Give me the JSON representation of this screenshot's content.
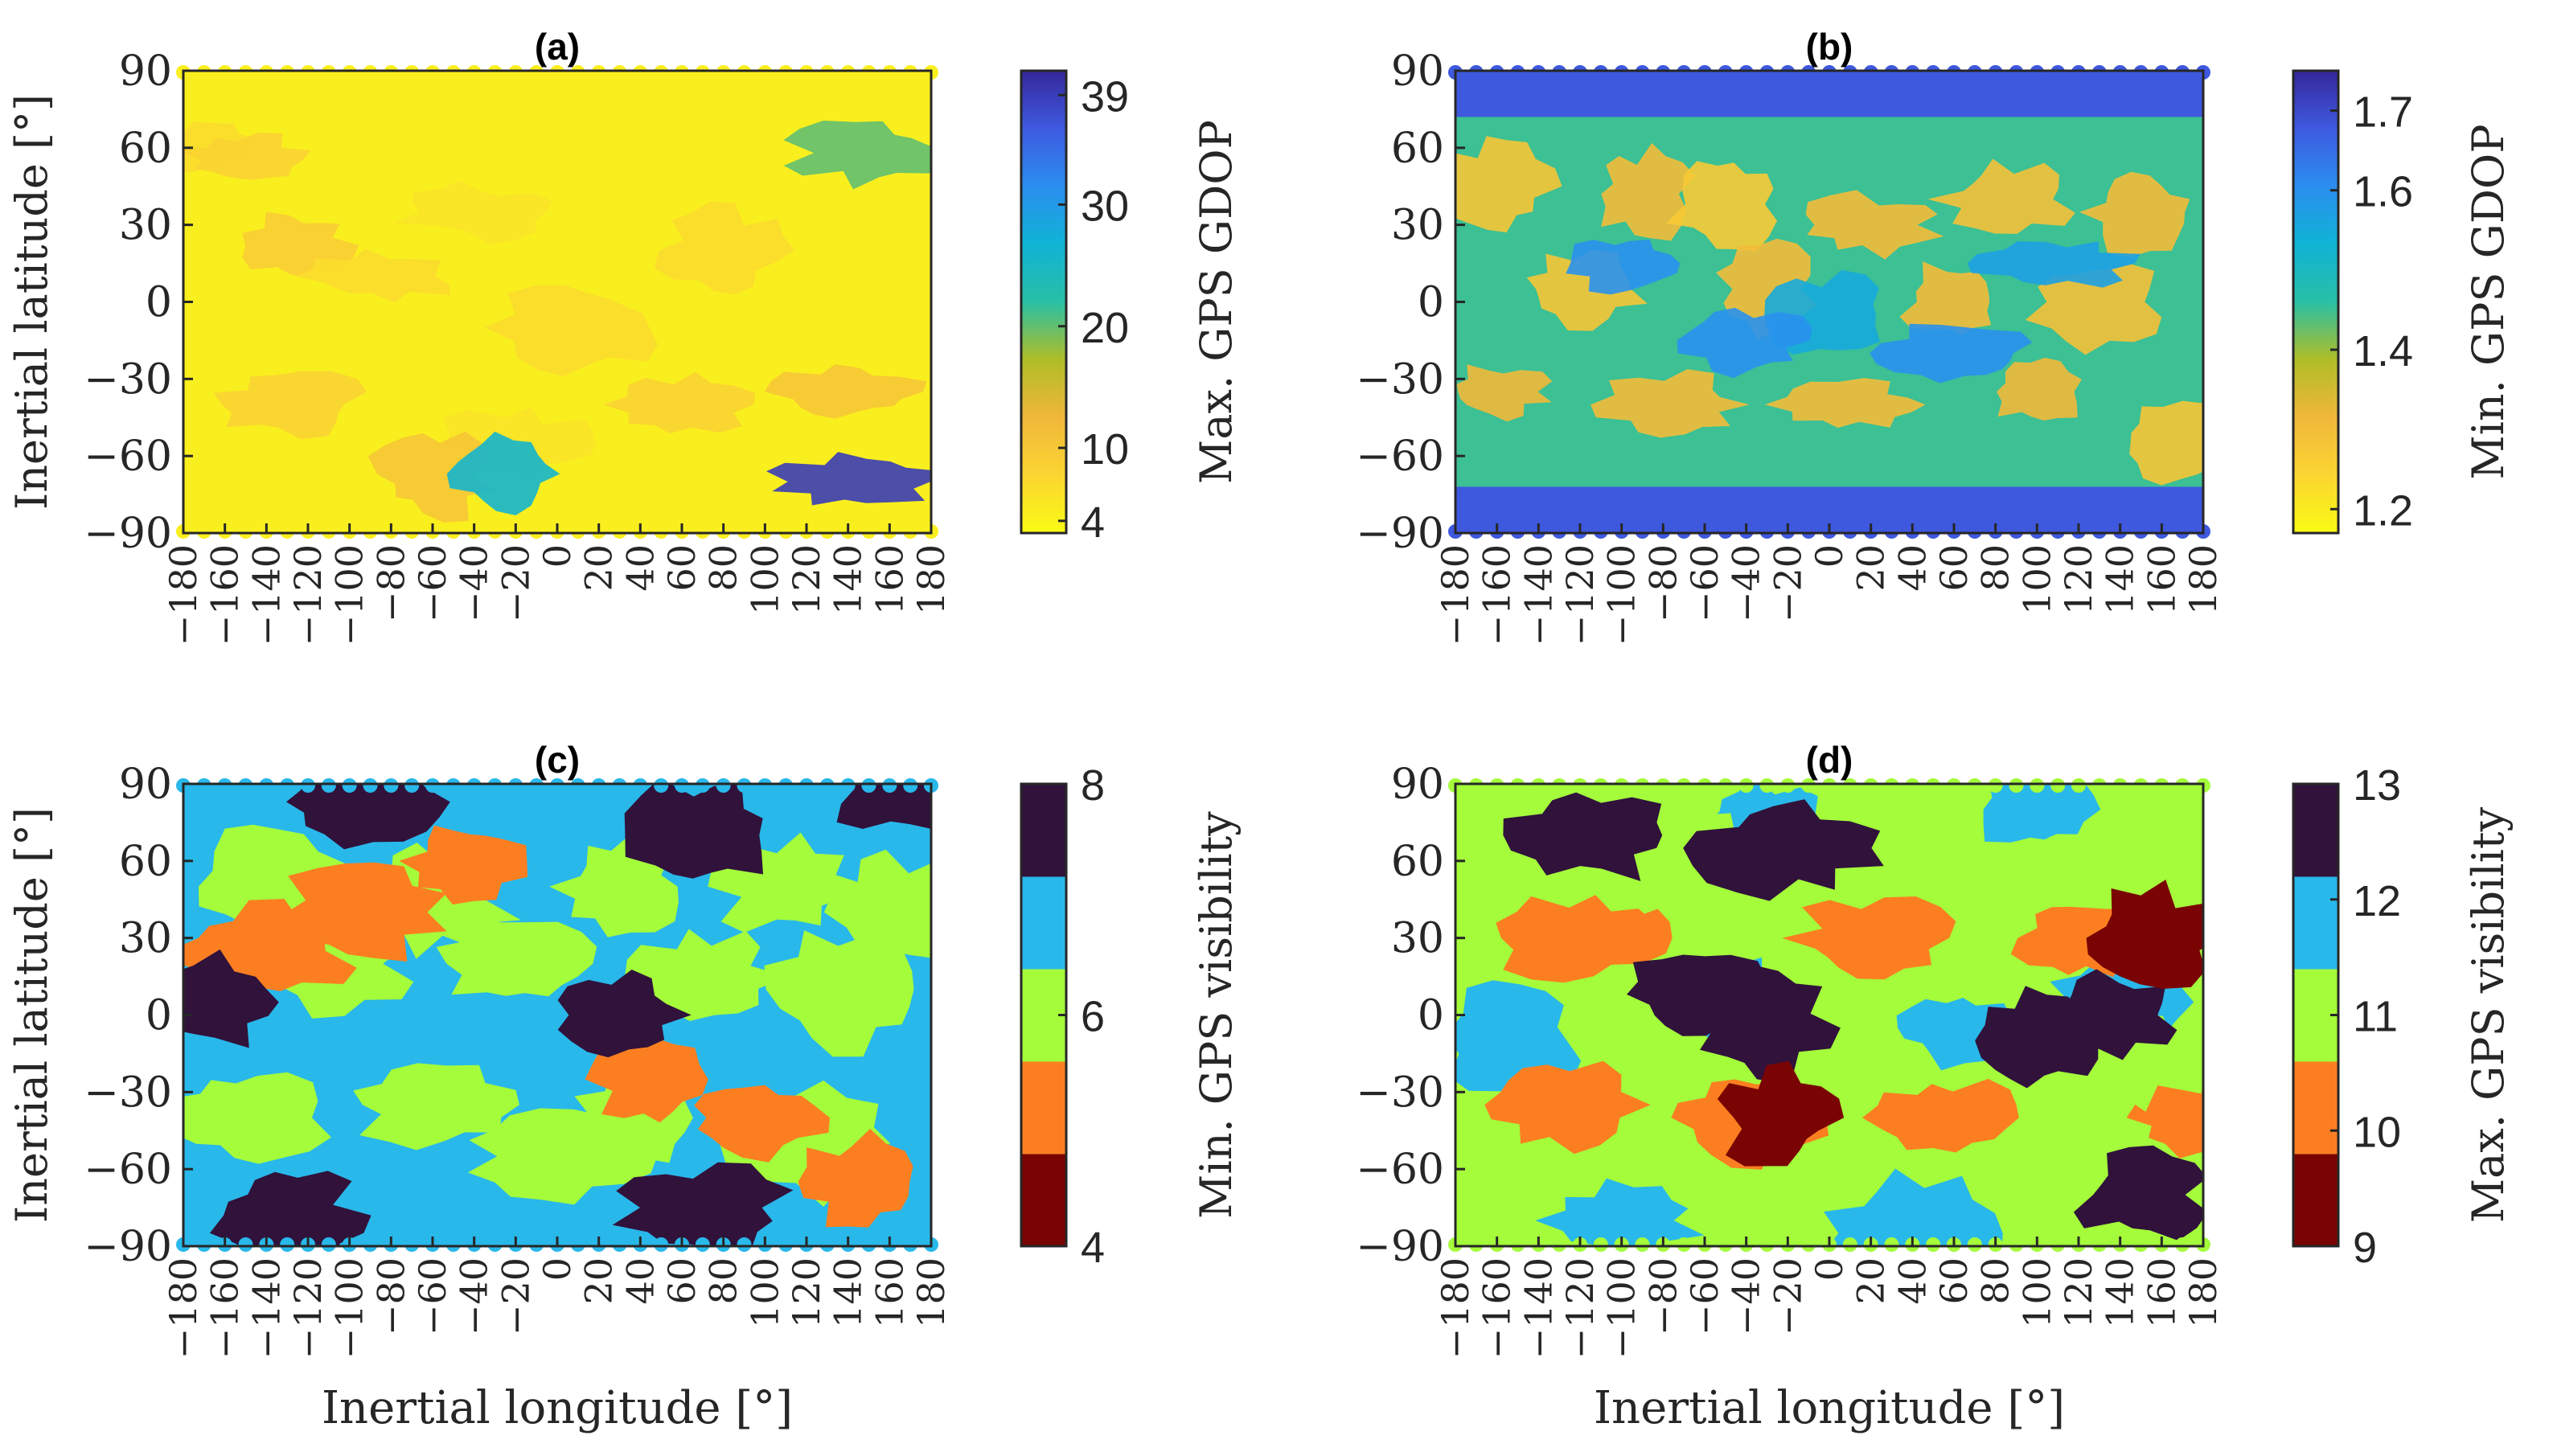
{
  "figure": {
    "x_axis_label": "Inertial longitude [°]",
    "y_axis_label": "Inertial latitude [°]"
  },
  "chart_data": [
    {
      "type": "heatmap",
      "panel": "(a)",
      "title": "(a)",
      "colorbar_label": "Max. GPS GDOP",
      "colorbar_ticks": [
        "4",
        "10",
        "20",
        "30",
        "39"
      ],
      "colorbar_tick_values": [
        4,
        10,
        20,
        30,
        39
      ],
      "colorbar_range": [
        3,
        41
      ],
      "colormap": "continuous",
      "colors": [
        "#f9fb15",
        "#fbd531",
        "#f0b73b",
        "#b0bd27",
        "#29c0a5",
        "#10b3d5",
        "#2b8ef0",
        "#3e5ae0",
        "#35279a"
      ],
      "xlabel": "Inertial longitude [°]",
      "ylabel": "Inertial latitude [°]",
      "xlim": [
        -180,
        180
      ],
      "ylim": [
        -90,
        90
      ],
      "x_ticks": [
        "−180",
        "−160",
        "−140",
        "−120",
        "−100",
        "−80",
        "−60",
        "−40",
        "−20",
        "0",
        "20",
        "40",
        "60",
        "80",
        "100",
        "120",
        "140",
        "160",
        "180"
      ],
      "y_ticks": [
        "−90",
        "−60",
        "−30",
        "0",
        "30",
        "60",
        "90"
      ],
      "background_value": 4.5,
      "regions": [
        {
          "lon": -170,
          "lat": 60,
          "value": 7
        },
        {
          "lon": -150,
          "lat": 55,
          "value": 8
        },
        {
          "lon": -125,
          "lat": 22,
          "value": 9
        },
        {
          "lon": -85,
          "lat": 10,
          "value": 7
        },
        {
          "lon": -40,
          "lat": 35,
          "value": 6
        },
        {
          "lon": 10,
          "lat": -10,
          "value": 7
        },
        {
          "lon": 80,
          "lat": 20,
          "value": 7
        },
        {
          "lon": -130,
          "lat": -40,
          "value": 8
        },
        {
          "lon": -20,
          "lat": -55,
          "value": 6
        },
        {
          "lon": 60,
          "lat": -40,
          "value": 8
        },
        {
          "lon": 140,
          "lat": -35,
          "value": 10
        },
        {
          "lon": -60,
          "lat": -67,
          "value": 10
        },
        {
          "lon": 150,
          "lat": 58,
          "value": 20
        },
        {
          "lon": -25,
          "lat": -67,
          "value": 26
        },
        {
          "lon": 143,
          "lat": -70,
          "value": 39
        }
      ]
    },
    {
      "type": "heatmap",
      "panel": "(b)",
      "title": "(b)",
      "colorbar_label": "Min. GPS GDOP",
      "colorbar_ticks": [
        "1.2",
        "1.4",
        "1.6",
        "1.7"
      ],
      "colorbar_tick_values": [
        1.2,
        1.4,
        1.6,
        1.7
      ],
      "colorbar_range": [
        1.17,
        1.75
      ],
      "colormap": "continuous",
      "colors": [
        "#f9fb15",
        "#fbd531",
        "#f0b73b",
        "#b0bd27",
        "#29c0a5",
        "#10b3d5",
        "#2b8ef0",
        "#3e5ae0",
        "#35279a"
      ],
      "xlabel": "Inertial longitude [°]",
      "ylabel": "Inertial latitude [°]",
      "xlim": [
        -180,
        180
      ],
      "ylim": [
        -90,
        90
      ],
      "x_ticks": [
        "−180",
        "−160",
        "−140",
        "−120",
        "−100",
        "−80",
        "−60",
        "−40",
        "−20",
        "0",
        "20",
        "40",
        "60",
        "80",
        "100",
        "120",
        "140",
        "160",
        "180"
      ],
      "y_ticks": [
        "−90",
        "−60",
        "−30",
        "0",
        "30",
        "60",
        "90"
      ],
      "background_value": 1.45,
      "regions": [
        {
          "lon": -160,
          "lat": 45,
          "value": 1.28
        },
        {
          "lon": -90,
          "lat": 42,
          "value": 1.3
        },
        {
          "lon": -50,
          "lat": 38,
          "value": 1.27
        },
        {
          "lon": 20,
          "lat": 30,
          "value": 1.3
        },
        {
          "lon": 85,
          "lat": 40,
          "value": 1.29
        },
        {
          "lon": 150,
          "lat": 35,
          "value": 1.3
        },
        {
          "lon": -120,
          "lat": 5,
          "value": 1.28
        },
        {
          "lon": -30,
          "lat": 5,
          "value": 1.3
        },
        {
          "lon": 60,
          "lat": 0,
          "value": 1.3
        },
        {
          "lon": 130,
          "lat": 0,
          "value": 1.29
        },
        {
          "lon": -160,
          "lat": -35,
          "value": 1.31
        },
        {
          "lon": -75,
          "lat": -40,
          "value": 1.3
        },
        {
          "lon": 10,
          "lat": -40,
          "value": 1.3
        },
        {
          "lon": 100,
          "lat": -35,
          "value": 1.31
        },
        {
          "lon": 165,
          "lat": -55,
          "value": 1.28
        },
        {
          "lon": -100,
          "lat": 15,
          "value": 1.6
        },
        {
          "lon": 0,
          "lat": -5,
          "value": 1.55
        },
        {
          "lon": 110,
          "lat": 15,
          "value": 1.57
        },
        {
          "lon": -40,
          "lat": -15,
          "value": 1.6
        },
        {
          "lon": 60,
          "lat": -20,
          "value": 1.6
        }
      ],
      "polar_bands": [
        {
          "lat_from": 72,
          "lat_to": 90,
          "value": 1.68
        },
        {
          "lat_from": -90,
          "lat_to": -72,
          "value": 1.68
        }
      ]
    },
    {
      "type": "heatmap",
      "panel": "(c)",
      "title": "(c)",
      "colorbar_label": "Min. GPS visibility",
      "colorbar_ticks": [
        "4",
        "6",
        "8"
      ],
      "colorbar_tick_values": [
        4,
        6,
        8
      ],
      "colorbar_range": [
        4,
        8
      ],
      "colormap": "discrete",
      "levels": [
        4,
        5,
        6,
        7,
        8
      ],
      "colors": [
        "#7a0403",
        "#fb7f21",
        "#a4fc3b",
        "#29b8ea",
        "#30123b"
      ],
      "xlabel": "Inertial longitude [°]",
      "ylabel": "Inertial latitude [°]",
      "xlim": [
        -180,
        180
      ],
      "ylim": [
        -90,
        90
      ],
      "x_ticks": [
        "−180",
        "−160",
        "−140",
        "−120",
        "−100",
        "−80",
        "−60",
        "−40",
        "−20",
        "0",
        "20",
        "40",
        "60",
        "80",
        "100",
        "120",
        "140",
        "160",
        "180"
      ],
      "y_ticks": [
        "−90",
        "−60",
        "−30",
        "0",
        "30",
        "60",
        "90"
      ],
      "background_value": 7,
      "regions": [
        {
          "lon": -140,
          "lat": 50,
          "value": 6
        },
        {
          "lon": -60,
          "lat": 45,
          "value": 6
        },
        {
          "lon": 30,
          "lat": 50,
          "value": 6
        },
        {
          "lon": 110,
          "lat": 50,
          "value": 6
        },
        {
          "lon": 165,
          "lat": 40,
          "value": 6
        },
        {
          "lon": -110,
          "lat": 20,
          "value": 6
        },
        {
          "lon": -20,
          "lat": 20,
          "value": 6
        },
        {
          "lon": 70,
          "lat": 15,
          "value": 6
        },
        {
          "lon": 140,
          "lat": 10,
          "value": 6
        },
        {
          "lon": -150,
          "lat": -40,
          "value": 6
        },
        {
          "lon": -60,
          "lat": -35,
          "value": 6
        },
        {
          "lon": 40,
          "lat": -40,
          "value": 6
        },
        {
          "lon": 120,
          "lat": -50,
          "value": 6
        },
        {
          "lon": 0,
          "lat": -55,
          "value": 6
        },
        {
          "lon": -140,
          "lat": 25,
          "value": 5
        },
        {
          "lon": -95,
          "lat": 40,
          "value": 5
        },
        {
          "lon": -45,
          "lat": 60,
          "value": 5
        },
        {
          "lon": 45,
          "lat": -25,
          "value": 5
        },
        {
          "lon": 95,
          "lat": -40,
          "value": 5
        },
        {
          "lon": 145,
          "lat": -65,
          "value": 5
        },
        {
          "lon": -170,
          "lat": 5,
          "value": 8
        },
        {
          "lon": 30,
          "lat": 0,
          "value": 8
        },
        {
          "lon": -95,
          "lat": 83,
          "value": 8
        },
        {
          "lon": 70,
          "lat": 70,
          "value": 8
        },
        {
          "lon": -130,
          "lat": -78,
          "value": 8
        },
        {
          "lon": 70,
          "lat": -75,
          "value": 8
        },
        {
          "lon": 165,
          "lat": 87,
          "value": 8
        }
      ]
    },
    {
      "type": "heatmap",
      "panel": "(d)",
      "title": "(d)",
      "colorbar_label": "Max. GPS visibility",
      "colorbar_ticks": [
        "9",
        "10",
        "11",
        "12",
        "13"
      ],
      "colorbar_tick_values": [
        9,
        10,
        11,
        12,
        13
      ],
      "colorbar_range": [
        9,
        13
      ],
      "colormap": "discrete",
      "levels": [
        9,
        10,
        11,
        12,
        13
      ],
      "colors": [
        "#7a0403",
        "#fb7f21",
        "#a4fc3b",
        "#29b8ea",
        "#30123b"
      ],
      "xlabel": "Inertial longitude [°]",
      "ylabel": "Inertial latitude [°]",
      "xlim": [
        -180,
        180
      ],
      "ylim": [
        -90,
        90
      ],
      "x_ticks": [
        "−180",
        "−160",
        "−140",
        "−120",
        "−100",
        "−80",
        "−60",
        "−40",
        "−20",
        "0",
        "20",
        "40",
        "60",
        "80",
        "100",
        "120",
        "140",
        "160",
        "180"
      ],
      "y_ticks": [
        "−90",
        "−60",
        "−30",
        "0",
        "30",
        "60",
        "90"
      ],
      "background_value": 11,
      "regions": [
        {
          "lon": -155,
          "lat": -10,
          "value": 12
        },
        {
          "lon": -50,
          "lat": 5,
          "value": 12
        },
        {
          "lon": 60,
          "lat": -5,
          "value": 12
        },
        {
          "lon": 140,
          "lat": 5,
          "value": 12
        },
        {
          "lon": -30,
          "lat": 75,
          "value": 12
        },
        {
          "lon": 100,
          "lat": 80,
          "value": 12
        },
        {
          "lon": -100,
          "lat": -80,
          "value": 12
        },
        {
          "lon": 40,
          "lat": -85,
          "value": 12
        },
        {
          "lon": -120,
          "lat": 30,
          "value": 10
        },
        {
          "lon": 20,
          "lat": 30,
          "value": 10
        },
        {
          "lon": 120,
          "lat": 30,
          "value": 10
        },
        {
          "lon": -130,
          "lat": -35,
          "value": 10
        },
        {
          "lon": -40,
          "lat": -40,
          "value": 10
        },
        {
          "lon": 55,
          "lat": -40,
          "value": 10
        },
        {
          "lon": 175,
          "lat": -40,
          "value": 10
        },
        {
          "lon": -80,
          "lat": 65,
          "value": 11
        },
        {
          "lon": 145,
          "lat": -15,
          "value": 11
        },
        {
          "lon": -65,
          "lat": 8,
          "value": 13
        },
        {
          "lon": -30,
          "lat": -5,
          "value": 13
        },
        {
          "lon": 100,
          "lat": -10,
          "value": 13
        },
        {
          "lon": 135,
          "lat": 0,
          "value": 13
        },
        {
          "lon": -20,
          "lat": 65,
          "value": 13
        },
        {
          "lon": -115,
          "lat": 70,
          "value": 13
        },
        {
          "lon": 150,
          "lat": -70,
          "value": 13
        },
        {
          "lon": -25,
          "lat": -40,
          "value": 9
        },
        {
          "lon": 155,
          "lat": 30,
          "value": 9
        }
      ]
    }
  ]
}
